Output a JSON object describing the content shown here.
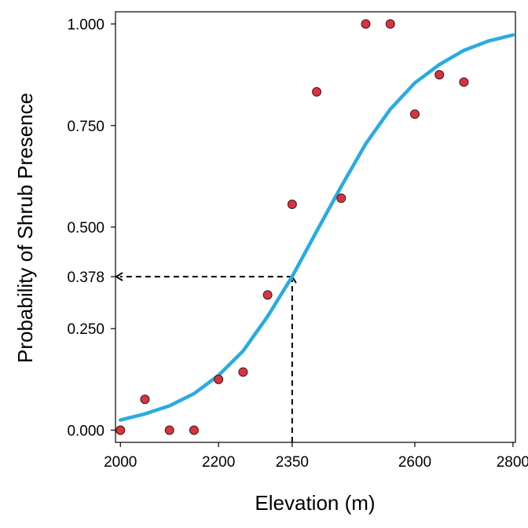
{
  "chart_data": {
    "type": "scatter",
    "title": "",
    "xlabel": "Elevation (m)",
    "ylabel": "Probability of Shrub Presence",
    "xlim": [
      1990,
      2805
    ],
    "ylim": [
      -0.03,
      1.03
    ],
    "grid": false,
    "legend": "none",
    "x_ticks": [
      2000,
      2200,
      2350,
      2600,
      2800
    ],
    "x_tick_labels": [
      "2000",
      "2200",
      "2350",
      "2600",
      "2800"
    ],
    "y_ticks": [
      0,
      0.25,
      0.378,
      0.5,
      0.75,
      1
    ],
    "y_tick_labels": [
      "0.000",
      "0.250",
      "0.378",
      "0.500",
      "0.750",
      "1.000"
    ],
    "points": {
      "x": [
        2000,
        2050,
        2100,
        2150,
        2200,
        2250,
        2300,
        2350,
        2400,
        2450,
        2500,
        2550,
        2600,
        2650,
        2700
      ],
      "y": [
        0.0,
        0.076,
        0.0,
        0.0,
        0.125,
        0.143,
        0.333,
        0.556,
        0.833,
        0.571,
        1.0,
        1.0,
        0.778,
        0.875,
        0.857
      ],
      "color": "#d9333f",
      "edge_color": "#3a1a1a"
    },
    "curve": {
      "x": [
        2000,
        2050,
        2100,
        2150,
        2200,
        2250,
        2300,
        2350,
        2400,
        2450,
        2500,
        2550,
        2600,
        2650,
        2700,
        2750,
        2800
      ],
      "y": [
        0.025,
        0.04,
        0.06,
        0.09,
        0.135,
        0.195,
        0.28,
        0.378,
        0.49,
        0.6,
        0.705,
        0.79,
        0.855,
        0.9,
        0.935,
        0.958,
        0.973
      ],
      "color": "#29abe2"
    },
    "reference": {
      "x": 2350,
      "y": 0.378,
      "style": "dashed"
    }
  }
}
